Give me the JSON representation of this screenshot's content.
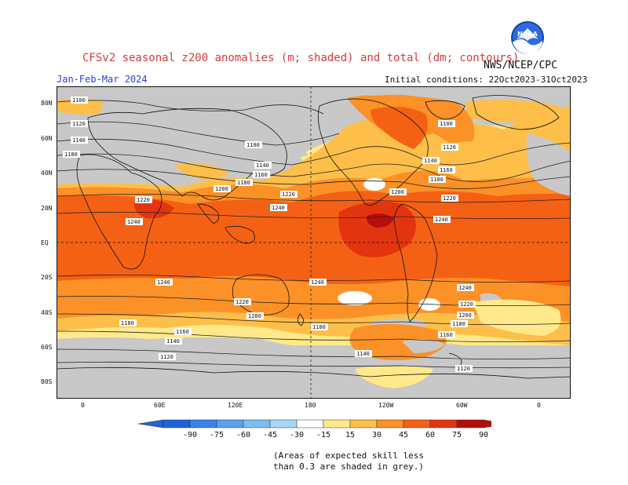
{
  "header": {
    "title": "CFSv2 seasonal z200 anomalies (m; shaded) and total (dm; contours)",
    "season": "Jan-Feb-Mar 2024",
    "agency": "NWS/NCEP/CPC",
    "initial_conditions": "Initial conditions: 22Oct2023-31Oct2023",
    "logo_text": "NOAA"
  },
  "lat_labels": [
    "80N",
    "60N",
    "40N",
    "20N",
    "EQ",
    "20S",
    "40S",
    "60S",
    "80S"
  ],
  "lon_labels": [
    "0",
    "60E",
    "120E",
    "180",
    "120W",
    "60W",
    "0"
  ],
  "contour_labels": [
    "1100",
    "1120",
    "1140",
    "1160",
    "1180",
    "1200",
    "1220",
    "1240"
  ],
  "colorbar": {
    "ticks": [
      "-90",
      "-75",
      "-60",
      "-45",
      "-30",
      "-15",
      "15",
      "30",
      "45",
      "60",
      "75",
      "90"
    ],
    "colors": [
      "#1e64d8",
      "#3a82e6",
      "#5aa0ee",
      "#7cbdf2",
      "#a6d6f6",
      "#ffffff",
      "#ffe98a",
      "#fdbf4a",
      "#fb9127",
      "#f46114",
      "#e33410",
      "#b40f0c"
    ]
  },
  "skill_note": {
    "line1": "(Areas of expected skill less",
    "line2": "than 0.3 are shaded in grey.)"
  },
  "colors": {
    "skill_grey": "#c8c8c8",
    "anom_15_30": "#ffe98a",
    "anom_30_45": "#fdbf4a",
    "anom_45_60": "#fb9127",
    "anom_60_75": "#f46114",
    "anom_75_90": "#e33410",
    "anom_90_plus": "#b40f0c"
  }
}
